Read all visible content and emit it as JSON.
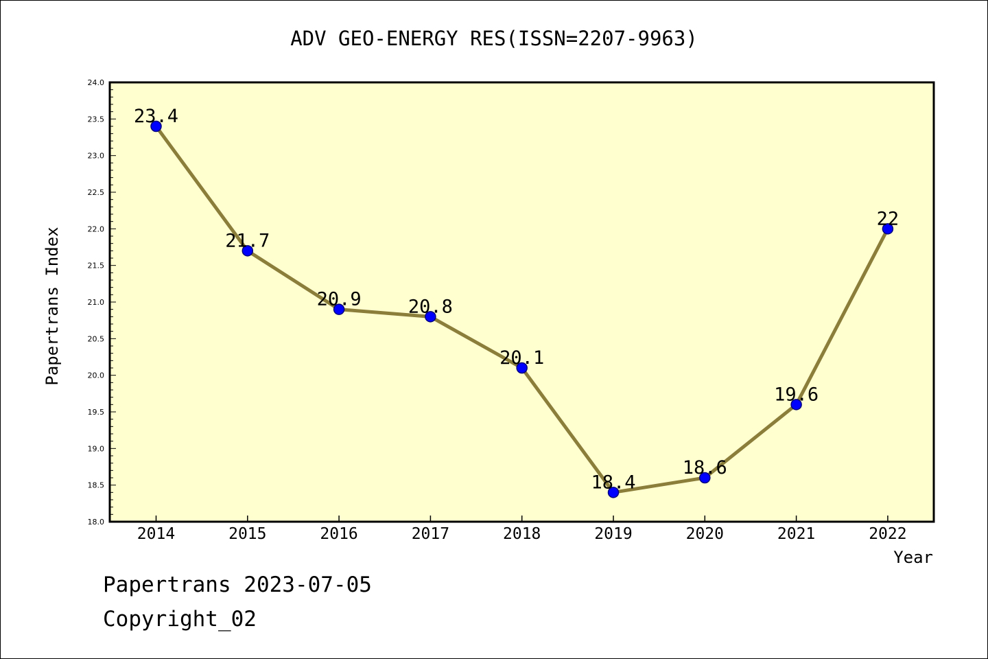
{
  "chart_data": {
    "type": "line",
    "title": "ADV GEO-ENERGY RES(ISSN=2207-9963)",
    "xlabel": "Year",
    "ylabel": "Papertrans Index",
    "categories": [
      "2014",
      "2015",
      "2016",
      "2017",
      "2018",
      "2019",
      "2020",
      "2021",
      "2022"
    ],
    "values": [
      23.4,
      21.7,
      20.9,
      20.8,
      20.1,
      18.4,
      18.6,
      19.6,
      22
    ],
    "data_labels": [
      "23.4",
      "21.7",
      "20.9",
      "20.8",
      "20.1",
      "18.4",
      "18.6",
      "19.6",
      "22"
    ],
    "ylim": [
      18.0,
      24.0
    ],
    "yticks": [
      "18.0",
      "18.5",
      "19.0",
      "19.5",
      "20.0",
      "20.5",
      "21.0",
      "21.5",
      "22.0",
      "22.5",
      "23.0",
      "23.5",
      "24.0"
    ],
    "grid": false,
    "colors": {
      "plot_background": "#FFFFD0",
      "line": "#8B7D3A",
      "marker_fill": "#0000FF",
      "marker_edge": "#000080"
    }
  },
  "footer": {
    "date_line": "Papertrans 2023-07-05",
    "copyright_line": "Copyright_02"
  }
}
